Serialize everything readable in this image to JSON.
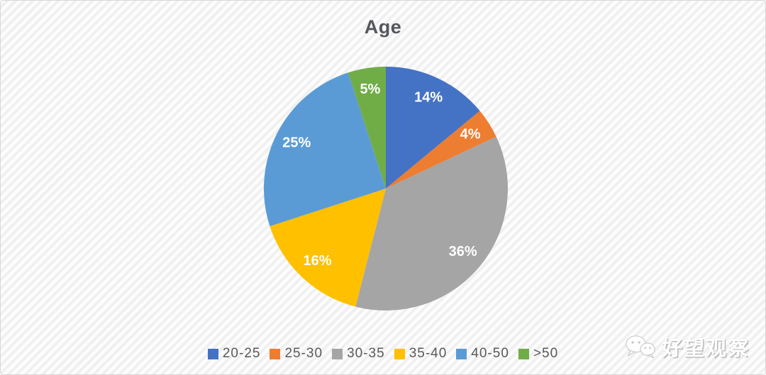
{
  "chart_data": {
    "type": "pie",
    "title": "Age",
    "categories": [
      "20-25",
      "25-30",
      "30-35",
      "35-40",
      "40-50",
      ">50"
    ],
    "values": [
      14,
      4,
      36,
      16,
      25,
      5
    ],
    "labels": [
      "14%",
      "4%",
      "36%",
      "16%",
      "25%",
      "5%"
    ],
    "colors": [
      "#4472C4",
      "#ED7D31",
      "#A5A5A5",
      "#FFC000",
      "#5B9BD5",
      "#70AD47"
    ],
    "start_angle_deg": 0,
    "direction": "clockwise",
    "legend_position": "bottom",
    "slice_label_color": "#FFFFFF",
    "title_color": "#54575C",
    "legend_text_color": "#595959"
  },
  "watermark": {
    "icon": "wechat-icon",
    "text": "好望观察"
  }
}
